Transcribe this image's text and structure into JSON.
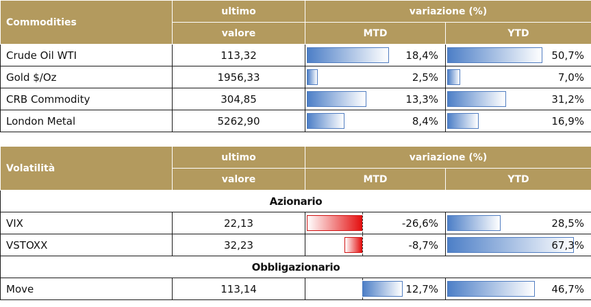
{
  "commodities": {
    "header": {
      "name": "Commodities",
      "ultimo": "ultimo",
      "valore": "valore",
      "variazione": "variazione (%)",
      "mtd": "MTD",
      "ytd": "YTD"
    },
    "rows": [
      {
        "name": "Crude Oil WTI",
        "value": "113,32",
        "mtd": "18,4%",
        "mtd_num": 18.4,
        "ytd": "50,7%",
        "ytd_num": 50.7
      },
      {
        "name": "Gold $/Oz",
        "value": "1956,33",
        "mtd": "2,5%",
        "mtd_num": 2.5,
        "ytd": "7,0%",
        "ytd_num": 7.0
      },
      {
        "name": "CRB Commodity",
        "value": "304,85",
        "mtd": "13,3%",
        "mtd_num": 13.3,
        "ytd": "31,2%",
        "ytd_num": 31.2
      },
      {
        "name": "London Metal",
        "value": "5262,90",
        "mtd": "8,4%",
        "mtd_num": 8.4,
        "ytd": "16,9%",
        "ytd_num": 16.9
      }
    ]
  },
  "volatility": {
    "header": {
      "name": "Volatilità",
      "ultimo": "ultimo",
      "valore": "valore",
      "variazione": "variazione (%)",
      "mtd": "MTD",
      "ytd": "YTD"
    },
    "sections": [
      {
        "title": "Azionario",
        "rows": [
          {
            "name": "VIX",
            "value": "22,13",
            "mtd": "-26,6%",
            "mtd_num": -26.6,
            "ytd": "28,5%",
            "ytd_num": 28.5
          },
          {
            "name": "VSTOXX",
            "value": "32,23",
            "mtd": "-8,7%",
            "mtd_num": -8.7,
            "ytd": "67,3%",
            "ytd_num": 67.3
          }
        ]
      },
      {
        "title": "Obbligazionario",
        "rows": [
          {
            "name": "Move",
            "value": "113,14",
            "mtd": "12,7%",
            "mtd_num": 12.7,
            "ytd": "46,7%",
            "ytd_num": 46.7
          }
        ]
      }
    ]
  },
  "colors": {
    "header_bg": "#b39a5e",
    "positive_bar": "#4d7fc7",
    "negative_bar": "#e41010"
  }
}
